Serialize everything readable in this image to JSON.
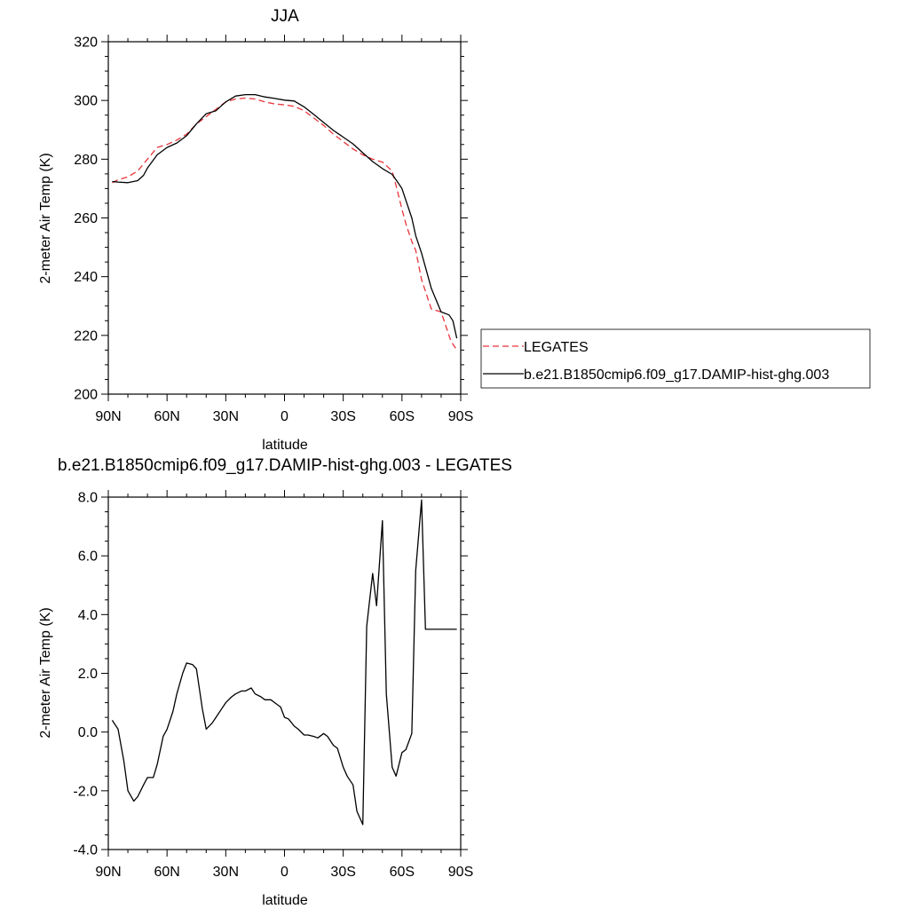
{
  "chart_data": [
    {
      "type": "line",
      "title": "JJA",
      "xlabel": "latitude",
      "ylabel": "2-meter Air Temp (K)",
      "xlim": [
        90,
        -90
      ],
      "ylim": [
        200,
        320
      ],
      "x_ticks": [
        "90N",
        "60N",
        "30N",
        "0",
        "30S",
        "60S",
        "90S"
      ],
      "y_ticks": [
        "200",
        "220",
        "240",
        "260",
        "280",
        "300",
        "320"
      ],
      "legend_position": "right",
      "series": [
        {
          "name": "LEGATES",
          "style": "dashed",
          "color": "#e8343a",
          "x": [
            88,
            85,
            80,
            75,
            70,
            65,
            60,
            55,
            50,
            45,
            40,
            35,
            30,
            25,
            20,
            15,
            10,
            5,
            0,
            -5,
            -10,
            -15,
            -20,
            -25,
            -30,
            -35,
            -40,
            -45,
            -50,
            -55,
            -57,
            -60,
            -62,
            -65,
            -67,
            -70,
            -75,
            -80,
            -85,
            -88
          ],
          "y": [
            272,
            273,
            274,
            276,
            280,
            284,
            285,
            286.5,
            288.5,
            292,
            294.5,
            297,
            299.5,
            300.5,
            300.8,
            300.5,
            299.5,
            298.8,
            298.5,
            298,
            296.5,
            294,
            291.5,
            288.5,
            286,
            283.5,
            281.5,
            280,
            279,
            276,
            271,
            263,
            258,
            252,
            249,
            239,
            229,
            228,
            218,
            215
          ]
        },
        {
          "name": "b.e21.B1850cmip6.f09_g17.DAMIP-hist-ghg.003",
          "style": "solid",
          "color": "#000000",
          "x": [
            88,
            85,
            80,
            75,
            72,
            70,
            65,
            60,
            55,
            50,
            45,
            40,
            35,
            30,
            25,
            20,
            15,
            10,
            5,
            0,
            -5,
            -10,
            -15,
            -20,
            -25,
            -30,
            -35,
            -40,
            -45,
            -50,
            -55,
            -58,
            -60,
            -62,
            -65,
            -67,
            -70,
            -75,
            -80,
            -84,
            -86,
            -88
          ],
          "y": [
            272.4,
            272.2,
            272,
            272.7,
            274.5,
            277,
            281.5,
            284,
            285.5,
            288,
            292,
            295.5,
            296.5,
            299.5,
            301.5,
            302,
            302,
            301.2,
            300.7,
            300.1,
            299.8,
            297.8,
            295.2,
            292.5,
            289.8,
            287.5,
            285.2,
            282.2,
            279.2,
            276.8,
            274.8,
            272,
            270,
            266,
            260,
            254,
            248,
            236,
            228,
            227,
            225,
            219
          ]
        }
      ]
    },
    {
      "type": "line",
      "title": "b.e21.B1850cmip6.f09_g17.DAMIP-hist-ghg.003 - LEGATES",
      "xlabel": "latitude",
      "ylabel": "2-meter Air Temp (K)",
      "xlim": [
        90,
        -90
      ],
      "ylim": [
        -4,
        8
      ],
      "x_ticks": [
        "90N",
        "60N",
        "30N",
        "0",
        "30S",
        "60S",
        "90S"
      ],
      "y_ticks": [
        "-4.0",
        "-2.0",
        "0.0",
        "2.0",
        "4.0",
        "6.0",
        "8.0"
      ],
      "series": [
        {
          "color": "#000000",
          "x": [
            88,
            85,
            82,
            80,
            77,
            75,
            72,
            70,
            67,
            65,
            62,
            60,
            57,
            55,
            52,
            50,
            47,
            45,
            42,
            40,
            37,
            35,
            32,
            30,
            27,
            25,
            22,
            20,
            17,
            15,
            12,
            10,
            7,
            5,
            2,
            0,
            -2,
            -5,
            -7,
            -10,
            -12,
            -15,
            -17,
            -20,
            -22,
            -25,
            -27,
            -30,
            -32,
            -35,
            -37,
            -40,
            -42,
            -45,
            -47,
            -50,
            -52,
            -55,
            -57,
            -60,
            -62,
            -65,
            -67,
            -70,
            -72,
            -75,
            -77,
            -80,
            -82,
            -85,
            -87,
            -88
          ],
          "y": [
            0.4,
            0.1,
            -1.0,
            -2.0,
            -2.35,
            -2.2,
            -1.8,
            -1.55,
            -1.55,
            -1.1,
            -0.15,
            0.1,
            0.7,
            1.3,
            2.0,
            2.35,
            2.3,
            2.15,
            0.8,
            0.1,
            0.3,
            0.5,
            0.8,
            1.0,
            1.2,
            1.3,
            1.4,
            1.4,
            1.5,
            1.3,
            1.2,
            1.1,
            1.1,
            1.0,
            0.85,
            0.5,
            0.45,
            0.2,
            0.1,
            -0.1,
            -0.1,
            -0.15,
            -0.2,
            -0.05,
            -0.15,
            -0.45,
            -0.55,
            -1.2,
            -1.5,
            -1.8,
            -2.7,
            -3.15,
            3.6,
            5.4,
            4.3,
            7.2,
            1.3,
            -1.2,
            -1.5,
            -0.7,
            -0.6,
            -0.05,
            5.5,
            7.9,
            3.5,
            3.5,
            3.5,
            3.5,
            3.5,
            3.5,
            3.5,
            3.5
          ]
        }
      ]
    }
  ]
}
